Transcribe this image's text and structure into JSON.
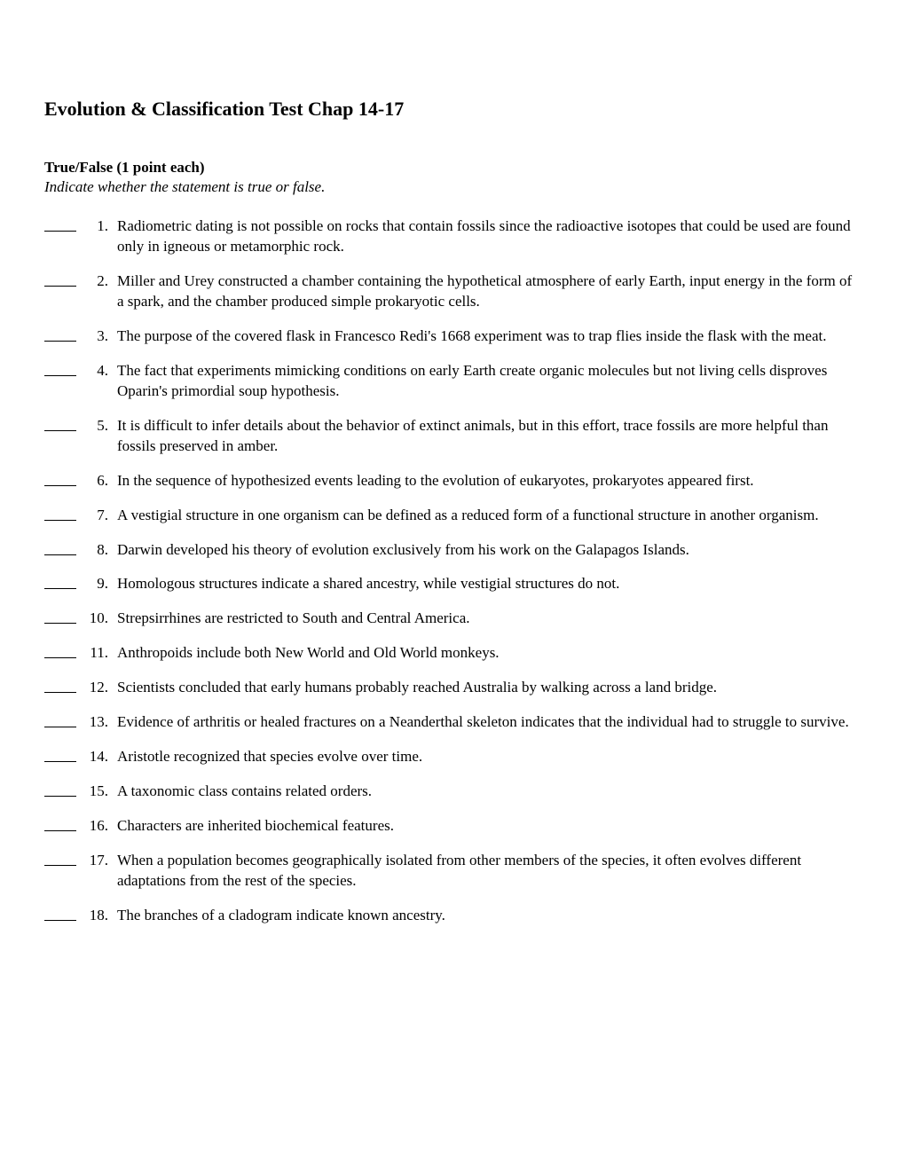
{
  "title": "Evolution & Classification Test Chap 14-17",
  "section": {
    "header": "True/False (1 point each)",
    "sub": "Indicate whether the statement is true or false."
  },
  "questions": [
    {
      "n": "1.",
      "t": "Radiometric dating is not possible on rocks that contain fossils since the radioactive isotopes that could be used are found only in igneous or metamorphic rock."
    },
    {
      "n": "2.",
      "t": "Miller and Urey constructed a chamber containing the hypothetical atmosphere of early Earth, input energy in the form of a spark, and the chamber produced simple prokaryotic cells."
    },
    {
      "n": "3.",
      "t": "The purpose of the covered flask in Francesco Redi's 1668 experiment was to trap flies inside the flask with the meat."
    },
    {
      "n": "4.",
      "t": "The fact that experiments mimicking conditions on early Earth create organic molecules but not living cells disproves Oparin's primordial soup hypothesis."
    },
    {
      "n": "5.",
      "t": "It is difficult to infer details about the behavior of extinct animals, but in this effort, trace fossils are more helpful than fossils preserved in amber."
    },
    {
      "n": "6.",
      "t": "In the sequence of hypothesized events leading to the evolution of eukaryotes, prokaryotes appeared first."
    },
    {
      "n": "7.",
      "t": "A vestigial structure in one organism can be defined as a reduced form of a functional structure in another organism."
    },
    {
      "n": "8.",
      "t": "Darwin developed his theory of evolution exclusively from his work on the Galapagos Islands."
    },
    {
      "n": "9.",
      "t": "Homologous structures indicate a shared ancestry, while vestigial structures do not."
    },
    {
      "n": "10.",
      "t": "Strepsirrhines are restricted to South and Central America."
    },
    {
      "n": "11.",
      "t": "Anthropoids include both New World and Old World monkeys."
    },
    {
      "n": "12.",
      "t": "Scientists concluded that early humans probably reached Australia by walking across a land bridge."
    },
    {
      "n": "13.",
      "t": "Evidence of arthritis or healed fractures on a Neanderthal skeleton indicates that the individual had to struggle to survive."
    },
    {
      "n": "14.",
      "t": "Aristotle recognized that species evolve over time."
    },
    {
      "n": "15.",
      "t": "A taxonomic class contains related orders."
    },
    {
      "n": "16.",
      "t": "Characters are inherited biochemical features."
    },
    {
      "n": "17.",
      "t": "When a population becomes geographically isolated from other members of the species, it often evolves different adaptations from the rest of the species."
    },
    {
      "n": "18.",
      "t": "The branches of a cladogram indicate known ancestry."
    }
  ],
  "style": {
    "page_bg": "#ffffff",
    "text_color": "#000000",
    "font_family": "Times New Roman",
    "title_fontsize": 22,
    "body_fontsize": 17,
    "line_height": 1.35
  }
}
